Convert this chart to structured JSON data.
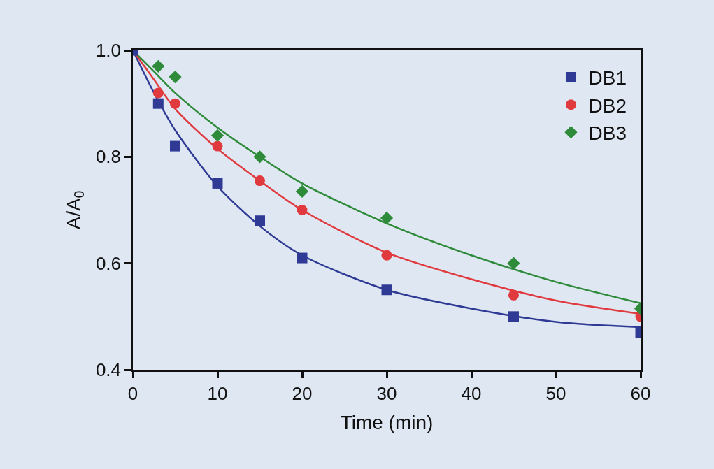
{
  "chart_data": {
    "type": "scatter",
    "xlabel": "Time (min)",
    "ylabel": "A/A$_{0}$",
    "xlim": [
      0,
      60
    ],
    "xticks": [
      0,
      10,
      20,
      30,
      40,
      50,
      60
    ],
    "ylim": [
      0.4,
      1.0
    ],
    "yticks": [
      0.4,
      0.6,
      0.8,
      {
        "value": 1,
        "label": "1.0"
      }
    ],
    "grid": false,
    "legend": "top right",
    "series": [
      {
        "name": "DB1",
        "color": "#2e3a94",
        "marker": "square",
        "x": [
          0,
          3,
          5,
          10,
          15,
          20,
          30,
          45,
          60
        ],
        "values": [
          1.0,
          0.9,
          0.82,
          0.75,
          0.68,
          0.61,
          0.55,
          0.5,
          0.47
        ]
      },
      {
        "name": "DB2",
        "color": "#e03a3e",
        "marker": "circle",
        "x": [
          3,
          5,
          10,
          15,
          20,
          30,
          45,
          60
        ],
        "values": [
          0.92,
          0.9,
          0.82,
          0.755,
          0.7,
          0.615,
          0.54,
          0.5
        ]
      },
      {
        "name": "DB3",
        "color": "#2e8b3a",
        "marker": "diamond",
        "x": [
          3,
          5,
          10,
          15,
          20,
          30,
          45,
          60
        ],
        "values": [
          0.97,
          0.95,
          0.84,
          0.8,
          0.735,
          0.685,
          0.6,
          0.515
        ]
      },
      {
        "type": "line",
        "color": "#2e3a94",
        "marker": "none",
        "x": [
          0,
          2.5,
          5,
          10,
          15,
          20,
          30,
          40,
          50,
          60
        ],
        "values": [
          1.0,
          0.92,
          0.85,
          0.745,
          0.67,
          0.615,
          0.55,
          0.515,
          0.49,
          0.48
        ]
      },
      {
        "type": "line",
        "color": "#e03a3e",
        "marker": "none",
        "x": [
          0,
          2.5,
          5,
          10,
          15,
          20,
          30,
          40,
          50,
          60
        ],
        "values": [
          1.0,
          0.945,
          0.89,
          0.815,
          0.755,
          0.7,
          0.62,
          0.57,
          0.53,
          0.505
        ]
      },
      {
        "type": "line",
        "color": "#2e8b3a",
        "marker": "none",
        "x": [
          0,
          2.5,
          5,
          10,
          15,
          20,
          30,
          40,
          50,
          60
        ],
        "values": [
          1.0,
          0.96,
          0.92,
          0.855,
          0.8,
          0.75,
          0.675,
          0.615,
          0.565,
          0.525
        ]
      }
    ]
  }
}
